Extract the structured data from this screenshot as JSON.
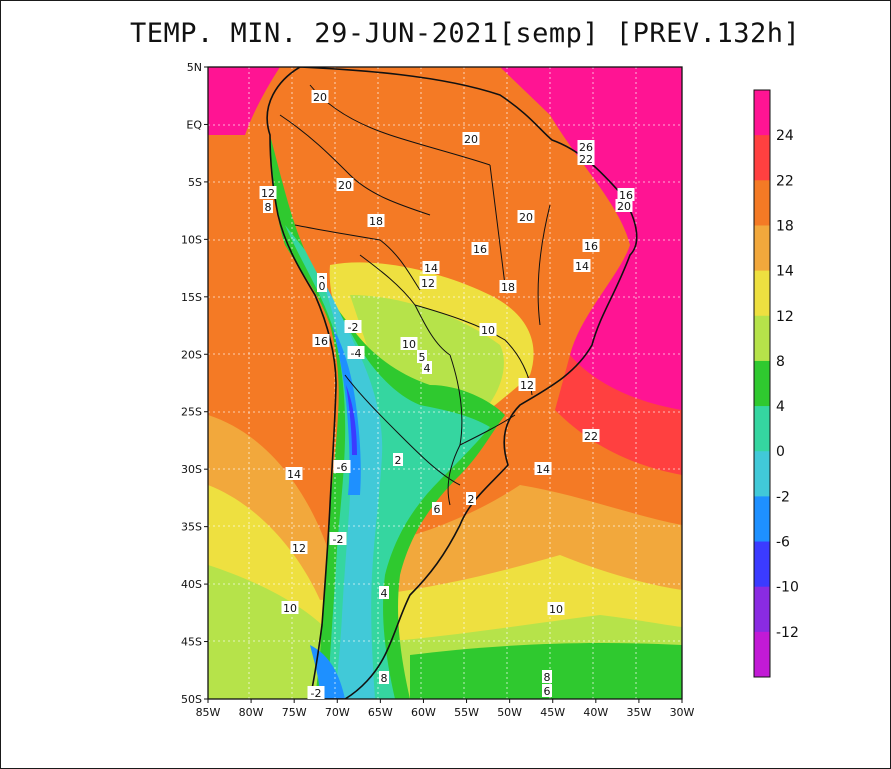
{
  "title": "TEMP. MIN. 29-JUN-2021[semp] [PREV.132h]",
  "map": {
    "region": "South America",
    "lat_labels": [
      "5N",
      "EQ",
      "5S",
      "10S",
      "15S",
      "20S",
      "25S",
      "30S",
      "35S",
      "40S",
      "45S",
      "50S"
    ],
    "lon_labels": [
      "85W",
      "80W",
      "75W",
      "70W",
      "65W",
      "60W",
      "55W",
      "50W",
      "45W",
      "40W",
      "35W",
      "30W"
    ],
    "contour_labels": [
      "20",
      "20",
      "26",
      "22",
      "20",
      "16",
      "20",
      "12",
      "8",
      "18",
      "20",
      "16",
      "16",
      "14",
      "14",
      "12",
      "18",
      "2",
      "0",
      "-2",
      "16",
      "10",
      "-4",
      "5",
      "4",
      "10",
      "12",
      "22",
      "-6",
      "2",
      "14",
      "14",
      "2",
      "6",
      "-2",
      "12",
      "4",
      "10",
      "10",
      "8",
      "6",
      "8",
      "-2"
    ]
  },
  "colorbar": {
    "labels": [
      "24",
      "22",
      "18",
      "14",
      "12",
      "8",
      "4",
      "0",
      "-2",
      "-6",
      "-10",
      "-12"
    ],
    "colors": [
      "#ff1493",
      "#ff4040",
      "#f47a25",
      "#f2a83c",
      "#eee040",
      "#b6e34a",
      "#2fc92f",
      "#35d6a0",
      "#41c9d8",
      "#1e90ff",
      "#3b3bff",
      "#8a2be2",
      "#c21ad6"
    ]
  }
}
